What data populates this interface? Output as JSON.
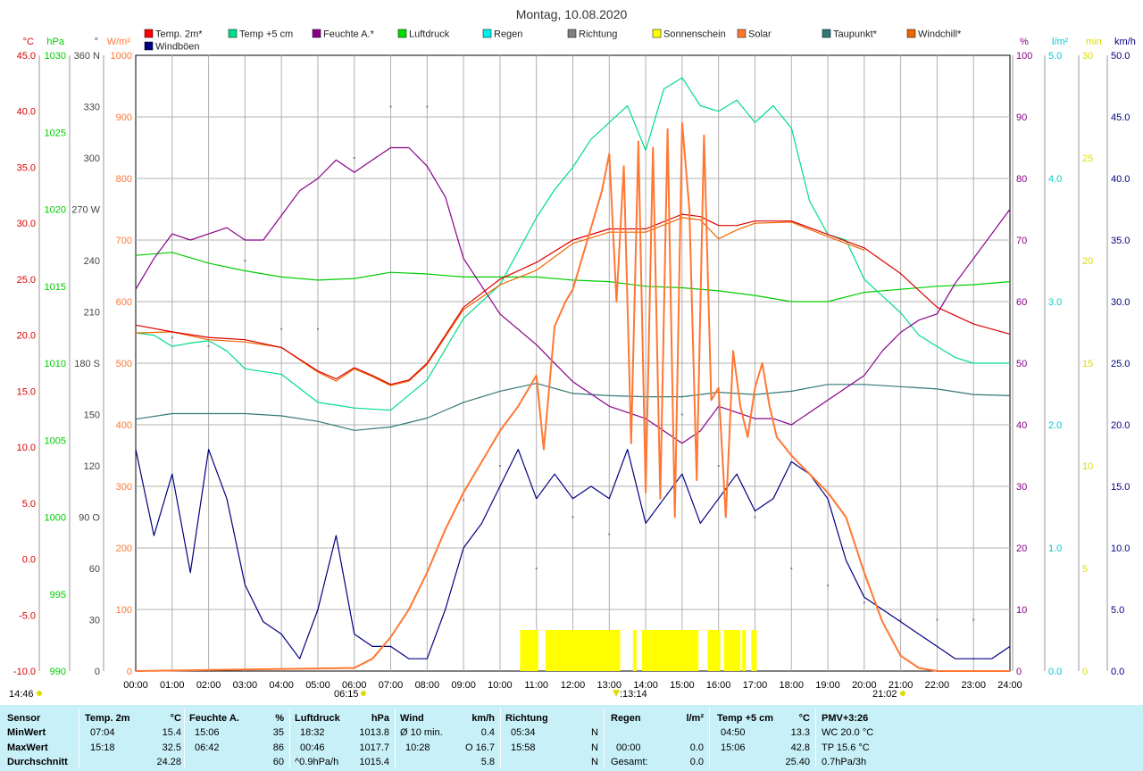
{
  "title": "Montag, 10.08.2020",
  "left_axes": [
    {
      "unit": "°C",
      "color": "#dd0000",
      "ticks": [
        "45.0",
        "40.0",
        "35.0",
        "30.0",
        "25.0",
        "20.0",
        "15.0",
        "10.0",
        "5.0",
        "0.0",
        "-5.0",
        "-10.0"
      ]
    },
    {
      "unit": "hPa",
      "color": "#00cc00",
      "ticks": [
        "1030",
        "1025",
        "1020",
        "1015",
        "1010",
        "1005",
        "1000",
        "995",
        "990"
      ]
    },
    {
      "unit": "°",
      "color": "#444444",
      "ticks": [
        "360 N",
        "330",
        "300",
        "270 W",
        "240",
        "210",
        "180 S",
        "150",
        "120",
        "90 O",
        "60",
        "30",
        "0"
      ]
    },
    {
      "unit": "W/m²",
      "color": "#ff7733",
      "ticks": [
        "1000",
        "900",
        "800",
        "700",
        "600",
        "500",
        "400",
        "300",
        "200",
        "100",
        "0"
      ]
    }
  ],
  "right_axes": [
    {
      "unit": "%",
      "color": "#880088",
      "ticks": [
        "100",
        "90",
        "80",
        "70",
        "60",
        "50",
        "40",
        "30",
        "20",
        "10",
        "0"
      ]
    },
    {
      "unit": "l/m²",
      "color": "#00cccc",
      "ticks": [
        "5.0",
        "4.0",
        "3.0",
        "2.0",
        "1.0",
        "0.0"
      ]
    },
    {
      "unit": "min",
      "color": "#dddd00",
      "ticks": [
        "30",
        "25",
        "20",
        "15",
        "10",
        "5",
        "0"
      ]
    },
    {
      "unit": "km/h",
      "color": "#000080",
      "ticks": [
        "50.0",
        "45.0",
        "40.0",
        "35.0",
        "30.0",
        "25.0",
        "20.0",
        "15.0",
        "10.0",
        "5.0",
        "0.0"
      ]
    }
  ],
  "legend": [
    {
      "label": "Temp. 2m*",
      "color": "#ff0000"
    },
    {
      "label": "Temp +5 cm",
      "color": "#00dd88"
    },
    {
      "label": "Feuchte A.*",
      "color": "#880088"
    },
    {
      "label": "Luftdruck",
      "color": "#00dd00"
    },
    {
      "label": "Regen",
      "color": "#00eeee"
    },
    {
      "label": "Richtung",
      "color": "#808080"
    },
    {
      "label": "Sonnenschein",
      "color": "#ffff00"
    },
    {
      "label": "Solar",
      "color": "#ff7733"
    },
    {
      "label": "Taupunkt*",
      "color": "#337777"
    },
    {
      "label": "Windchill*",
      "color": "#ee6600"
    },
    {
      "label": "Windböen",
      "color": "#000080"
    }
  ],
  "time_marks": {
    "left": "14:46",
    "sunrise": "06:15",
    "noon": "13:14",
    "sunset": "21:02"
  },
  "chart_data": {
    "type": "line",
    "x_ticks": [
      "00:00",
      "01:00",
      "02:00",
      "03:00",
      "04:00",
      "05:00",
      "06:00",
      "07:00",
      "08:00",
      "09:00",
      "10:00",
      "11:00",
      "12:00",
      "13:00",
      "14:00",
      "15:00",
      "16:00",
      "17:00",
      "18:00",
      "19:00",
      "20:00",
      "21:00",
      "22:00",
      "23:00",
      "24:00"
    ],
    "xlim": [
      0,
      24
    ],
    "grid": true,
    "series": [
      {
        "name": "Temp. 2m*",
        "axis": "°C",
        "ylim": [
          -10,
          45
        ],
        "color": "#dd0000",
        "x": [
          0,
          1,
          2,
          3,
          4,
          5,
          5.5,
          6,
          6.5,
          7,
          7.5,
          8,
          9,
          10,
          11,
          12,
          13,
          14,
          15,
          15.5,
          16,
          16.5,
          17,
          18,
          19,
          20,
          21,
          22,
          23,
          24
        ],
        "y": [
          20.9,
          20.3,
          19.8,
          19.6,
          18.9,
          16.8,
          16.1,
          17.1,
          16.4,
          15.6,
          16.0,
          17.5,
          22.5,
          25.0,
          26.5,
          28.5,
          29.5,
          29.5,
          30.8,
          30.6,
          29.8,
          29.8,
          30.2,
          30.2,
          29.0,
          27.8,
          25.5,
          22.5,
          21.0,
          20.1
        ]
      },
      {
        "name": "Windchill*",
        "axis": "°C",
        "ylim": [
          -10,
          45
        ],
        "color": "#ee6600",
        "x": [
          0,
          1,
          2,
          3,
          4,
          5,
          5.5,
          6,
          6.5,
          7,
          7.5,
          8,
          9,
          10,
          11,
          12,
          13,
          14,
          15,
          15.5,
          16,
          16.5,
          17,
          18,
          19,
          20
        ],
        "y": [
          20.2,
          20.3,
          19.6,
          19.4,
          18.9,
          16.7,
          15.9,
          17.0,
          16.3,
          15.5,
          15.9,
          17.4,
          22.3,
          24.5,
          25.8,
          28.2,
          29.2,
          29.2,
          30.5,
          30.3,
          28.6,
          29.4,
          30.0,
          30.1,
          28.8,
          27.6
        ]
      },
      {
        "name": "Temp +5 cm",
        "axis": "°C",
        "ylim": [
          -10,
          45
        ],
        "color": "#00dd88",
        "x": [
          0,
          0.5,
          1,
          1.5,
          2,
          2.5,
          3,
          4,
          5,
          6,
          7,
          8,
          9,
          10,
          11,
          11.5,
          12,
          12.5,
          13,
          13.5,
          14,
          14.5,
          15,
          15.5,
          16,
          16.5,
          17,
          17.5,
          18,
          18.5,
          19,
          19.5,
          20,
          20.5,
          21,
          21.5,
          22,
          22.5,
          23,
          23.5,
          24
        ],
        "y": [
          20.2,
          20.0,
          19.0,
          19.3,
          19.5,
          18.6,
          17.0,
          16.5,
          14.0,
          13.5,
          13.3,
          16.0,
          21.5,
          24.5,
          30.5,
          33.0,
          35.0,
          37.5,
          39.0,
          40.5,
          36.5,
          42.0,
          43.0,
          40.5,
          40.0,
          41.0,
          39.0,
          40.5,
          38.5,
          32.0,
          29.0,
          28.5,
          25.0,
          23.5,
          22.0,
          20.0,
          19.0,
          18.0,
          17.5,
          17.5,
          17.5
        ]
      },
      {
        "name": "Feuchte A.*",
        "axis": "%",
        "ylim": [
          0,
          100
        ],
        "color": "#880088",
        "x": [
          0,
          0.5,
          1,
          1.5,
          2,
          2.5,
          3,
          3.5,
          4,
          4.5,
          5,
          5.5,
          6,
          6.5,
          7,
          7.5,
          8,
          8.5,
          9,
          10,
          11,
          12,
          13,
          14,
          15,
          15.5,
          16,
          16.5,
          17,
          17.5,
          18,
          18.5,
          19,
          19.5,
          20,
          20.5,
          21,
          21.5,
          22,
          22.5,
          23,
          24
        ],
        "y": [
          62,
          67,
          71,
          70,
          71,
          72,
          70,
          70,
          74,
          78,
          80,
          83,
          81,
          83,
          85,
          85,
          82,
          77,
          67,
          58,
          53,
          47,
          43,
          41,
          37,
          39,
          43,
          42,
          41,
          41,
          40,
          42,
          44,
          46,
          48,
          52,
          55,
          57,
          58,
          63,
          67,
          75
        ]
      },
      {
        "name": "Luftdruck",
        "axis": "hPa",
        "ylim": [
          990,
          1030
        ],
        "color": "#00cc00",
        "x": [
          0,
          1,
          2,
          3,
          4,
          5,
          6,
          7,
          8,
          9,
          10,
          11,
          12,
          13,
          14,
          15,
          16,
          17,
          18,
          19,
          20,
          21,
          22,
          23,
          24
        ],
        "y": [
          1017.0,
          1017.2,
          1016.5,
          1016.0,
          1015.6,
          1015.4,
          1015.5,
          1015.9,
          1015.8,
          1015.6,
          1015.6,
          1015.6,
          1015.4,
          1015.3,
          1015.0,
          1014.9,
          1014.7,
          1014.4,
          1014.0,
          1014.0,
          1014.6,
          1014.8,
          1015.0,
          1015.1,
          1015.3
        ]
      },
      {
        "name": "Taupunkt*",
        "axis": "°C",
        "ylim": [
          -10,
          45
        ],
        "color": "#337777",
        "x": [
          0,
          1,
          2,
          3,
          4,
          5,
          6,
          7,
          8,
          9,
          10,
          11,
          12,
          13,
          14,
          15,
          16,
          17,
          18,
          19,
          20,
          21,
          22,
          23,
          24
        ],
        "y": [
          12.5,
          13.0,
          13.0,
          13.0,
          12.8,
          12.3,
          11.5,
          11.8,
          12.6,
          14.0,
          15.0,
          15.7,
          14.8,
          14.6,
          14.5,
          14.5,
          14.9,
          14.7,
          15.0,
          15.6,
          15.6,
          15.4,
          15.2,
          14.7,
          14.6
        ]
      },
      {
        "name": "Solar",
        "axis": "W/m²",
        "ylim": [
          0,
          1000
        ],
        "color": "#ff7733",
        "x": [
          0,
          6,
          6.5,
          7,
          7.5,
          8,
          8.5,
          9,
          9.5,
          10,
          10.5,
          11,
          11.2,
          11.5,
          11.8,
          12,
          12.5,
          12.8,
          13,
          13.2,
          13.4,
          13.6,
          13.8,
          14,
          14.2,
          14.4,
          14.6,
          14.8,
          15,
          15.2,
          15.4,
          15.6,
          15.8,
          16,
          16.2,
          16.4,
          16.6,
          16.8,
          17,
          17.2,
          17.4,
          17.6,
          18,
          18.5,
          19,
          19.5,
          20,
          20.5,
          21,
          21.5,
          22,
          24
        ],
        "y": [
          0,
          5,
          20,
          55,
          100,
          160,
          230,
          290,
          340,
          390,
          430,
          480,
          360,
          560,
          600,
          620,
          720,
          780,
          840,
          600,
          820,
          370,
          860,
          290,
          850,
          280,
          880,
          250,
          890,
          750,
          310,
          870,
          440,
          460,
          250,
          520,
          430,
          380,
          460,
          500,
          430,
          380,
          350,
          320,
          290,
          250,
          160,
          80,
          25,
          5,
          0,
          0
        ]
      },
      {
        "name": "Windböen",
        "axis": "km/h",
        "ylim": [
          0,
          50
        ],
        "color": "#000080",
        "x": [
          0,
          0.5,
          1,
          1.5,
          2,
          2.5,
          3,
          3.5,
          4,
          4.5,
          5,
          5.5,
          6,
          6.5,
          7,
          7.5,
          8,
          8.5,
          9,
          9.5,
          10,
          10.5,
          11,
          11.5,
          12,
          12.5,
          13,
          13.5,
          14,
          14.5,
          15,
          15.5,
          16,
          16.5,
          17,
          17.5,
          18,
          18.5,
          19,
          19.5,
          20,
          20.5,
          21,
          21.5,
          22,
          22.5,
          23,
          23.5,
          24
        ],
        "y": [
          18,
          11,
          16,
          8,
          18,
          14,
          7,
          4,
          3,
          1,
          5,
          11,
          3,
          2,
          2,
          1,
          1,
          5,
          10,
          12,
          15,
          18,
          14,
          16,
          14,
          15,
          14,
          18,
          12,
          14,
          16,
          12,
          14,
          16,
          13,
          14,
          17,
          16,
          14,
          9,
          6,
          5,
          4,
          3,
          2,
          1,
          1,
          1,
          2
        ]
      },
      {
        "name": "Richtung",
        "axis": "°",
        "ylim": [
          0,
          360
        ],
        "color": "#808080",
        "x": [
          0,
          1,
          2,
          3,
          4,
          5,
          6,
          7,
          8,
          9,
          10,
          11,
          12,
          13,
          14,
          15,
          16,
          17,
          18,
          19,
          20,
          21,
          22,
          23,
          24
        ],
        "y": [
          200,
          195,
          190,
          240,
          200,
          200,
          300,
          330,
          330,
          100,
          120,
          60,
          90,
          80,
          110,
          150,
          120,
          90,
          60,
          50,
          40,
          30,
          30,
          30,
          30
        ]
      }
    ],
    "sunshine_intervals": [
      [
        10.55,
        11.05
      ],
      [
        11.25,
        13.3
      ],
      [
        13.65,
        13.75
      ],
      [
        13.9,
        15.45
      ],
      [
        15.7,
        16.05
      ],
      [
        16.15,
        16.6
      ],
      [
        16.65,
        16.75
      ],
      [
        16.9,
        17.05
      ]
    ]
  },
  "stats": {
    "labels": {
      "sensor": "Sensor",
      "min": "MinWert",
      "max": "MaxWert",
      "avg": "Durchschnitt"
    },
    "temp2m": {
      "title": "Temp. 2m",
      "unit": "°C",
      "min_time": "07:04",
      "min_val": "15.4",
      "max_time": "15:18",
      "max_val": "32.5",
      "avg": "24.28"
    },
    "feuchte": {
      "title": "Feuchte A.",
      "unit": "%",
      "min_time": "15:06",
      "min_val": "35",
      "max_time": "06:42",
      "max_val": "86",
      "avg": "60"
    },
    "luftdruck": {
      "title": "Luftdruck",
      "unit": "hPa",
      "min_time": "18:32",
      "min_val": "1013.8",
      "max_time": "00:46",
      "max_val": "1017.7",
      "trend": "^0.9hPa/h",
      "avg": "1015.4"
    },
    "wind": {
      "title": "Wind",
      "unit": "km/h",
      "min_label": "Ø 10 min.",
      "min_val": "0.4",
      "max_time": "10:28",
      "max_val": "O 16.7",
      "avg": "5.8"
    },
    "richtung": {
      "title": "Richtung",
      "min_time": "05:34",
      "min_val": "N",
      "max_time": "15:58",
      "max_val": "N",
      "avg": "N"
    },
    "regen": {
      "title": "Regen",
      "unit": "l/m²",
      "max_time": "00:00",
      "max_val": "0.0",
      "total_label": "Gesamt:",
      "total_val": "0.0"
    },
    "temp5": {
      "title": "Temp +5 cm",
      "unit": "°C",
      "min_time": "04:50",
      "min_val": "13.3",
      "max_time": "15:06",
      "max_val": "42.8",
      "avg": "25.40"
    },
    "pmv": {
      "title": "PMV+3:26",
      "wc": "WC 20.0 °C",
      "tp": "TP 15.6 °C",
      "trend": "0.7hPa/3h"
    }
  }
}
